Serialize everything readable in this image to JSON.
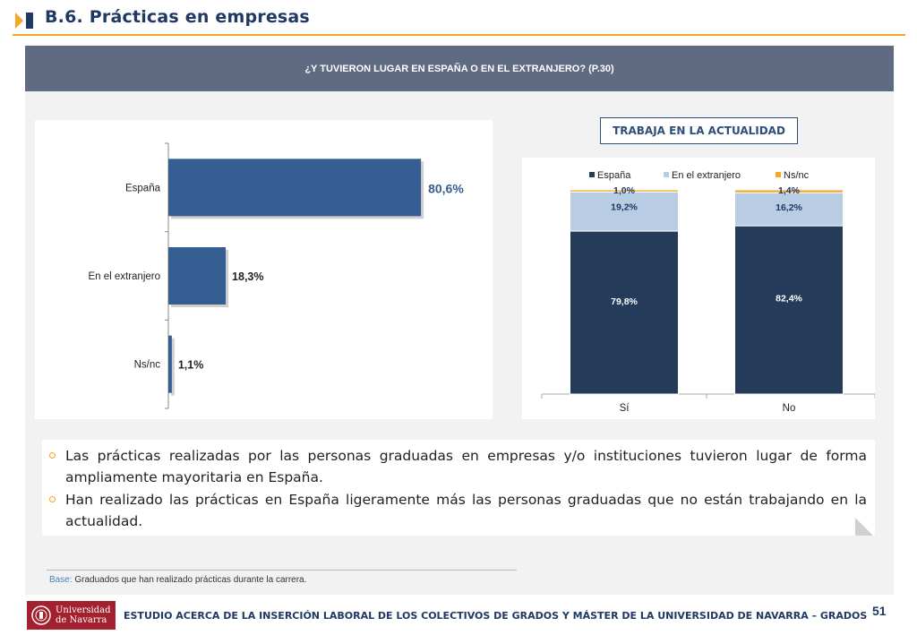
{
  "header": {
    "title": "B.6. Prácticas en empresas",
    "accent_color": "#f5a623",
    "icon": "chevron-right-icon"
  },
  "banner": {
    "question": "¿Y TUVIERON LUGAR EN ESPAÑA O EN EL EXTRANJERO? (P.30)"
  },
  "trabaja_label": "TRABAJA EN LA ACTUALIDAD",
  "chart_data": [
    {
      "type": "bar",
      "orientation": "horizontal",
      "categories": [
        "España",
        "En el extranjero",
        "Ns/nc"
      ],
      "values": [
        80.6,
        18.3,
        1.1
      ],
      "labels": [
        "80,6%",
        "18,3%",
        "1,1%"
      ],
      "color": "#355d91",
      "xlim": [
        0,
        100
      ]
    },
    {
      "type": "bar",
      "stacked": true,
      "categories": [
        "Sí",
        "No"
      ],
      "legend_position": "top",
      "ylim": [
        0,
        100
      ],
      "series": [
        {
          "name": "España",
          "values": [
            79.8,
            82.4
          ],
          "labels": [
            "79,8%",
            "82,4%"
          ],
          "color": "#243b5a"
        },
        {
          "name": "En el extranjero",
          "values": [
            19.2,
            16.2
          ],
          "labels": [
            "19,2%",
            "16,2%"
          ],
          "color": "#b8cce4"
        },
        {
          "name": "Ns/nc",
          "values": [
            1.0,
            1.4
          ],
          "labels": [
            "1,0%",
            "1,4%"
          ],
          "color": "#f5a623"
        }
      ]
    }
  ],
  "summary": {
    "bullets": [
      "Las prácticas realizadas por las personas graduadas en empresas y/o instituciones tuvieron lugar de forma ampliamente mayoritaria en España.",
      "Han realizado las prácticas en España ligeramente más las personas graduadas que no están trabajando en la actualidad."
    ]
  },
  "base": {
    "label": "Base:",
    "text": " Graduados que han realizado prácticas durante la carrera."
  },
  "footer": {
    "logo_line1": "Universidad",
    "logo_line2": "de Navarra",
    "text": "ESTUDIO ACERCA DE LA INSERCIÓN LABORAL DE LOS COLECTIVOS DE GRADOS Y MÁSTER DE LA UNIVERSIDAD DE NAVARRA – GRADOS",
    "page": "51"
  }
}
